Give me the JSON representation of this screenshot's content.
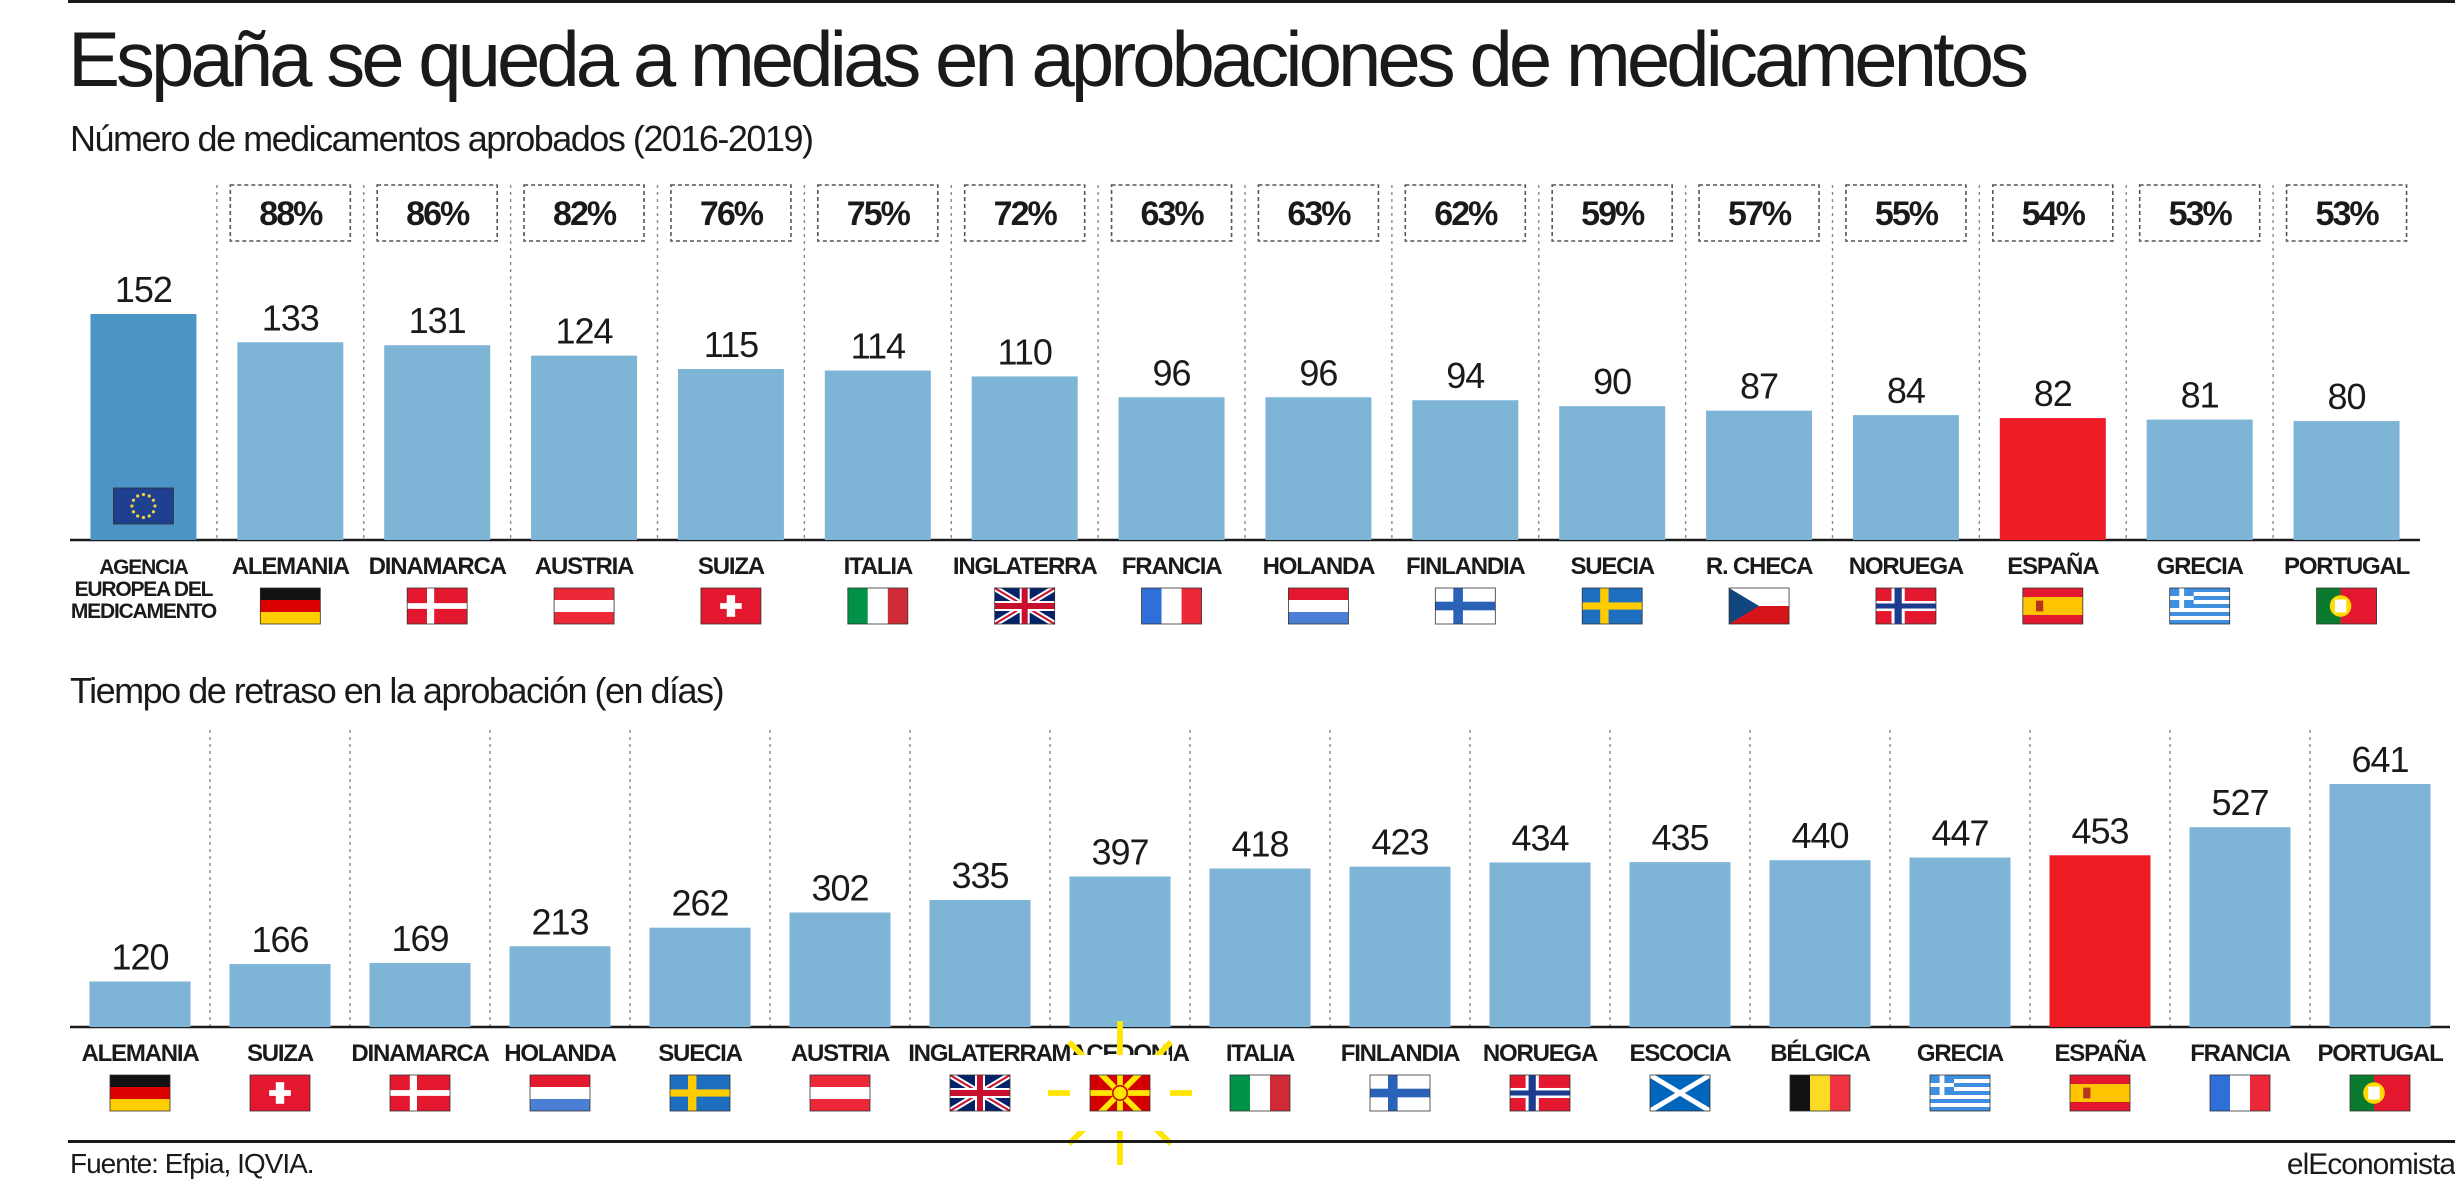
{
  "title": "España se queda a medias en aprobaciones de medicamentos",
  "colors": {
    "bar": "#7eb5d6",
    "highlight": "#ee1c25",
    "eu": "#4a94c6"
  },
  "chart_data": [
    {
      "type": "bar",
      "title": "Número de medicamentos aprobados (2016-2019)",
      "categories": [
        "AGENCIA EUROPEA DEL MEDICAMENTO",
        "ALEMANIA",
        "DINAMARCA",
        "AUSTRIA",
        "SUIZA",
        "ITALIA",
        "INGLATERRA",
        "FRANCIA",
        "HOLANDA",
        "FINLANDIA",
        "SUECIA",
        "R. CHECA",
        "NORUEGA",
        "ESPAÑA",
        "GRECIA",
        "PORTUGAL"
      ],
      "values": [
        152,
        133,
        131,
        124,
        115,
        114,
        110,
        96,
        96,
        94,
        90,
        87,
        84,
        82,
        81,
        80
      ],
      "percentages": [
        "",
        "88%",
        "86%",
        "82%",
        "76%",
        "75%",
        "72%",
        "63%",
        "63%",
        "62%",
        "59%",
        "57%",
        "55%",
        "54%",
        "53%",
        "53%"
      ],
      "flags": [
        "eu",
        "de",
        "dk",
        "at",
        "ch",
        "it",
        "gb",
        "fr",
        "nl",
        "fi",
        "se",
        "cz",
        "no",
        "es",
        "gr",
        "pt"
      ],
      "highlight": "ESPAÑA",
      "ylim": [
        0,
        152
      ]
    },
    {
      "type": "bar",
      "title": "Tiempo de retraso en la aprobación (en días)",
      "categories": [
        "ALEMANIA",
        "SUIZA",
        "DINAMARCA",
        "HOLANDA",
        "SUECIA",
        "AUSTRIA",
        "INGLATERRA",
        "MACEDONIA",
        "ITALIA",
        "FINLANDIA",
        "NORUEGA",
        "ESCOCIA",
        "BÉLGICA",
        "GRECIA",
        "ESPAÑA",
        "FRANCIA",
        "PORTUGAL"
      ],
      "values": [
        120,
        166,
        169,
        213,
        262,
        302,
        335,
        397,
        418,
        423,
        434,
        435,
        440,
        447,
        453,
        527,
        641
      ],
      "flags": [
        "de",
        "ch",
        "dk",
        "nl",
        "se",
        "at",
        "gb",
        "mk",
        "it",
        "fi",
        "no",
        "sco",
        "be",
        "gr",
        "es",
        "fr",
        "pt"
      ],
      "highlight": "ESPAÑA",
      "ylim": [
        0,
        641
      ]
    }
  ],
  "source": "Fuente: Efpia, IQVIA.",
  "brand": "elEconomista"
}
